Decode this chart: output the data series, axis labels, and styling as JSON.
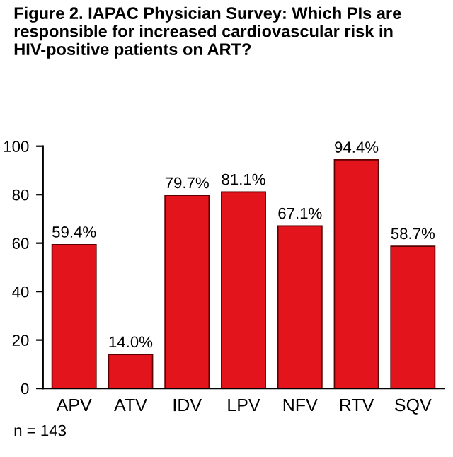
{
  "chart_data": {
    "type": "bar",
    "title": "Figure 2. IAPAC Physician Survey: Which PIs are responsible for increased cardiovascular risk in HIV-positive patients on ART?",
    "categories": [
      "APV",
      "ATV",
      "IDV",
      "LPV",
      "NFV",
      "RTV",
      "SQV"
    ],
    "values": [
      59.4,
      14.0,
      79.7,
      81.1,
      67.1,
      94.4,
      58.7
    ],
    "value_labels": [
      "59.4%",
      "14.0%",
      "79.7%",
      "81.1%",
      "67.1%",
      "94.4%",
      "58.7%"
    ],
    "color": "#e3141b",
    "ylim": [
      0,
      100
    ],
    "yticks": [
      0,
      20,
      40,
      60,
      80,
      100
    ],
    "grid": false,
    "legend": false,
    "annotations": [
      "n = 143"
    ]
  }
}
